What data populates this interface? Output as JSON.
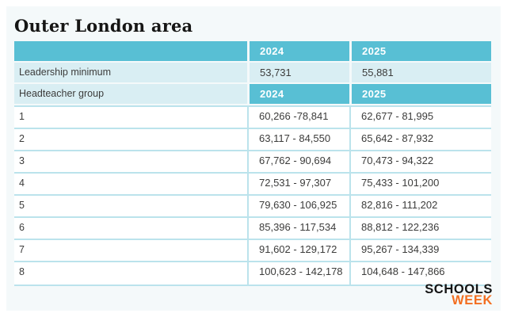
{
  "title": "Outer London area",
  "logo": {
    "line1": "SCHOOLS",
    "line2": "WEEK"
  },
  "colors": {
    "header_teal": "#58bfd4",
    "light_teal": "#d9eef3",
    "row_border": "#bbe3ec",
    "logo_orange": "#f36f21",
    "panel_bg": "#f4f9fa"
  },
  "table": {
    "year_headers": [
      "2024",
      "2025"
    ],
    "leadership_row": {
      "label": "Leadership minimum",
      "v2024": "53,731",
      "v2025": "55,881"
    },
    "headteacher_row": {
      "label": "Headteacher group",
      "h2024": "2024",
      "h2025": "2025"
    },
    "groups": [
      {
        "group": "1",
        "r2024": "60,266 -78,841",
        "r2025": "62,677 - 81,995"
      },
      {
        "group": "2",
        "r2024": "63,117 - 84,550",
        "r2025": "65,642 - 87,932"
      },
      {
        "group": "3",
        "r2024": "67,762 - 90,694",
        "r2025": "70,473 - 94,322"
      },
      {
        "group": "4",
        "r2024": "72,531 - 97,307",
        "r2025": "75,433 - 101,200"
      },
      {
        "group": "5",
        "r2024": "79,630 - 106,925",
        "r2025": "82,816 - 111,202"
      },
      {
        "group": "6",
        "r2024": "85,396 - 117,534",
        "r2025": "88,812 - 122,236"
      },
      {
        "group": "7",
        "r2024": "91,602 - 129,172",
        "r2025": "95,267 - 134,339"
      },
      {
        "group": "8",
        "r2024": "100,623 - 142,178",
        "r2025": "104,648 - 147,866"
      }
    ]
  },
  "chart_data": {
    "type": "table",
    "title": "Outer London area",
    "columns": [
      "",
      "2024",
      "2025"
    ],
    "rows": [
      [
        "Leadership minimum",
        "53,731",
        "55,881"
      ],
      [
        "Headteacher group",
        "2024",
        "2025"
      ],
      [
        "1",
        "60,266 -78,841",
        "62,677 - 81,995"
      ],
      [
        "2",
        "63,117 - 84,550",
        "65,642 - 87,932"
      ],
      [
        "3",
        "67,762 - 90,694",
        "70,473 - 94,322"
      ],
      [
        "4",
        "72,531 - 97,307",
        "75,433 - 101,200"
      ],
      [
        "5",
        "79,630 - 106,925",
        "82,816 - 111,202"
      ],
      [
        "6",
        "85,396 - 117,534",
        "88,812 - 122,236"
      ],
      [
        "7",
        "91,602 - 129,172",
        "95,267 - 134,339"
      ],
      [
        "8",
        "100,623 - 142,178",
        "104,648 - 147,866"
      ]
    ],
    "legend_position": "none",
    "grid": "row-lines"
  }
}
